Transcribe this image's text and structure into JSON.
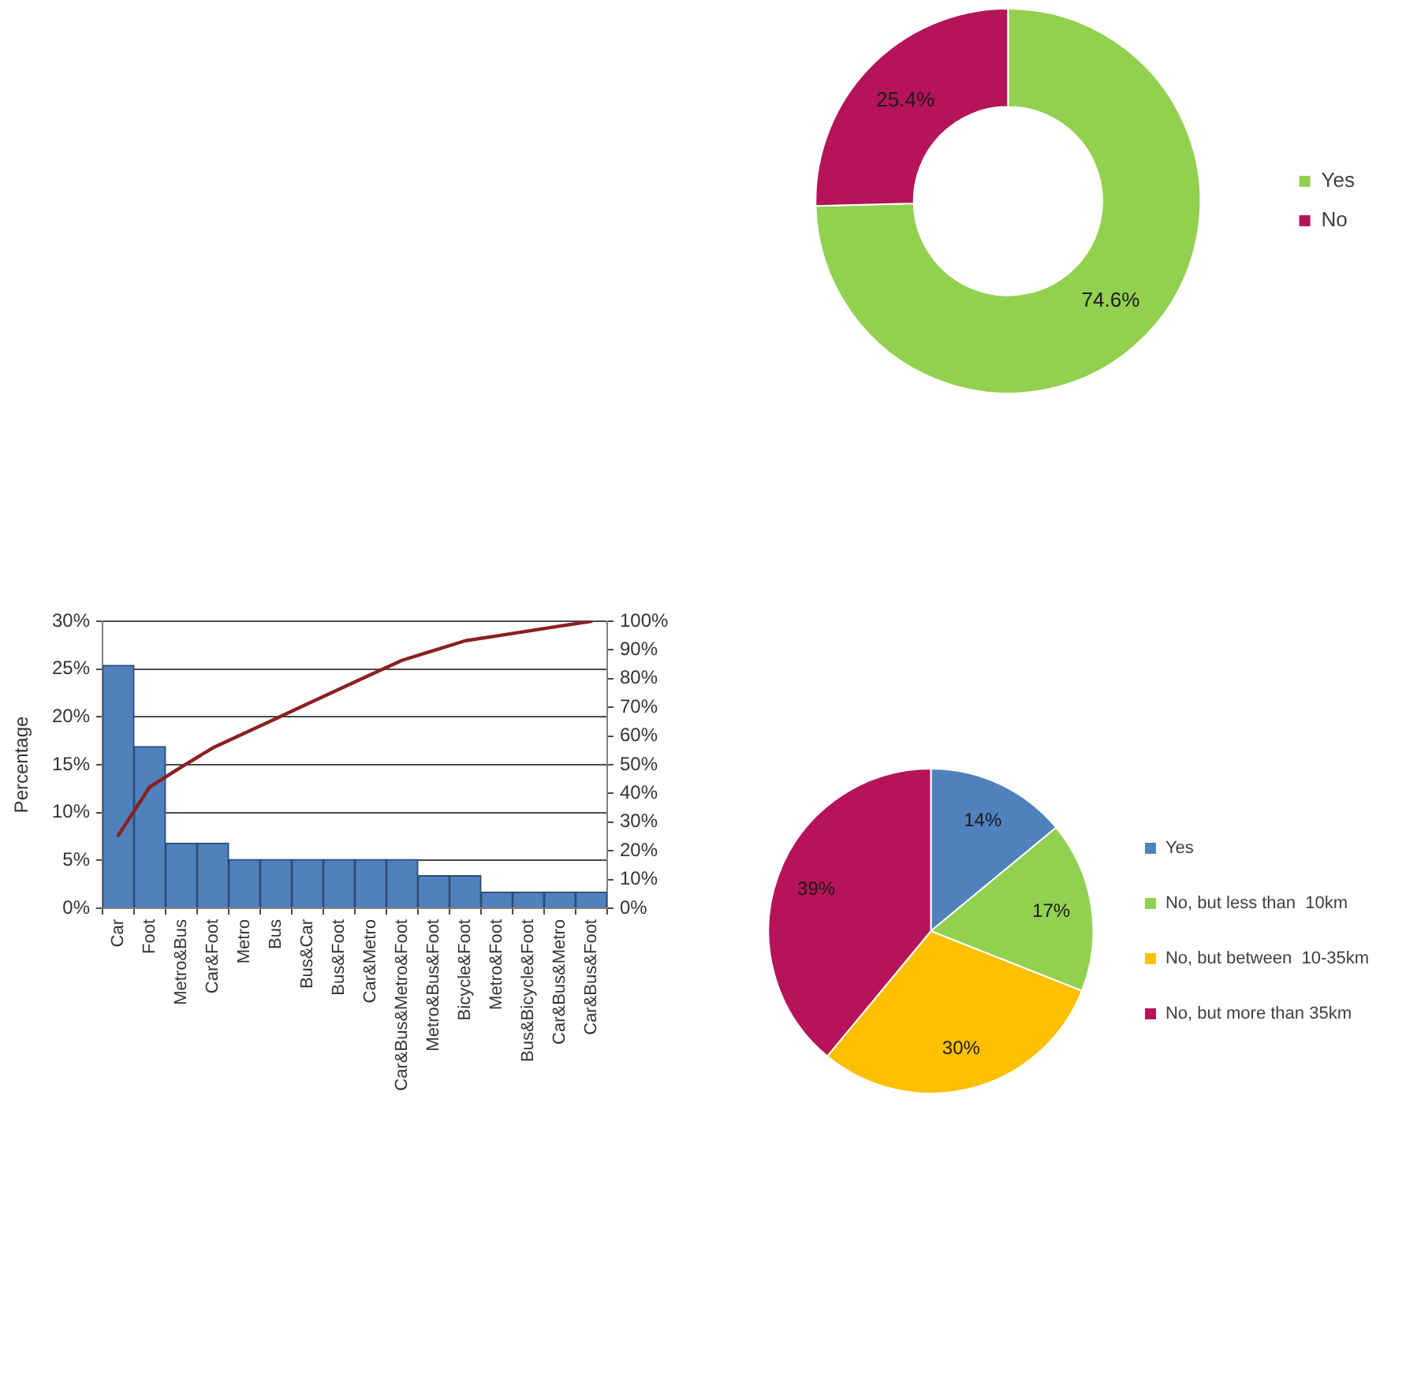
{
  "chart_data": [
    {
      "type": "donut",
      "categories": [
        "Yes",
        "No"
      ],
      "values": [
        74.6,
        25.4
      ],
      "colors": [
        "#92d050",
        "#b5135a"
      ],
      "value_labels": [
        "74.6%",
        "25.4%"
      ],
      "legend": "right"
    },
    {
      "type": "bar",
      "categories": [
        "Car",
        "Foot",
        "Metro&Bus",
        "Car&Foot",
        "Metro",
        "Bus",
        "Bus&Car",
        "Bus&Foot",
        "Car&Metro",
        "Car&Bus&Metro&Foot",
        "Metro&Bus&Foot",
        "Bicycle&Foot",
        "Metro&Foot",
        "Bus&Bicycle&Foot",
        "Car&Bus&Metro",
        "Car&Bus&Foot"
      ],
      "series": [
        {
          "type": "bar",
          "color": "#4f81bd",
          "values": [
            25.4,
            16.9,
            6.8,
            6.8,
            5.1,
            5.1,
            5.1,
            5.1,
            5.1,
            5.1,
            3.4,
            3.4,
            1.7,
            1.7,
            1.7,
            1.7
          ]
        },
        {
          "type": "line",
          "axis": "y2",
          "color": "#8b2020",
          "values": [
            25.4,
            42.3,
            49.2,
            55.9,
            61.0,
            66.1,
            71.2,
            76.3,
            81.4,
            86.4,
            89.8,
            93.2,
            94.9,
            96.6,
            98.3,
            100
          ]
        }
      ],
      "ylabel": "Percentage",
      "ylim": [
        0,
        30
      ],
      "yticks": [
        {
          "value": 0,
          "label": "0%"
        },
        {
          "value": 5,
          "label": "5%"
        },
        {
          "value": 10,
          "label": "10%"
        },
        {
          "value": 15,
          "label": "15%"
        },
        {
          "value": 20,
          "label": "20%"
        },
        {
          "value": 25,
          "label": "25%"
        },
        {
          "value": 30,
          "label": "30%"
        }
      ],
      "y2lim": [
        0,
        100
      ],
      "y2ticks": [
        {
          "value": 0,
          "label": "0%"
        },
        {
          "value": 10,
          "label": "10%"
        },
        {
          "value": 20,
          "label": "20%"
        },
        {
          "value": 30,
          "label": "30%"
        },
        {
          "value": 40,
          "label": "40%"
        },
        {
          "value": 50,
          "label": "50%"
        },
        {
          "value": 60,
          "label": "60%"
        },
        {
          "value": 70,
          "label": "70%"
        },
        {
          "value": 80,
          "label": "80%"
        },
        {
          "value": 90,
          "label": "90%"
        },
        {
          "value": 100,
          "label": "100%"
        }
      ],
      "grid": "y",
      "marker": "none"
    },
    {
      "type": "pie",
      "categories": [
        "Yes",
        "No, but less than  10km",
        "No, but between  10-35km",
        "No, but more than 35km"
      ],
      "values": [
        14,
        17,
        30,
        39
      ],
      "colors": [
        "#4f81bd",
        "#92d050",
        "#ffc000",
        "#b5135a"
      ],
      "value_labels": [
        "14%",
        "17%",
        "30%",
        "39%"
      ],
      "legend": "right"
    }
  ]
}
